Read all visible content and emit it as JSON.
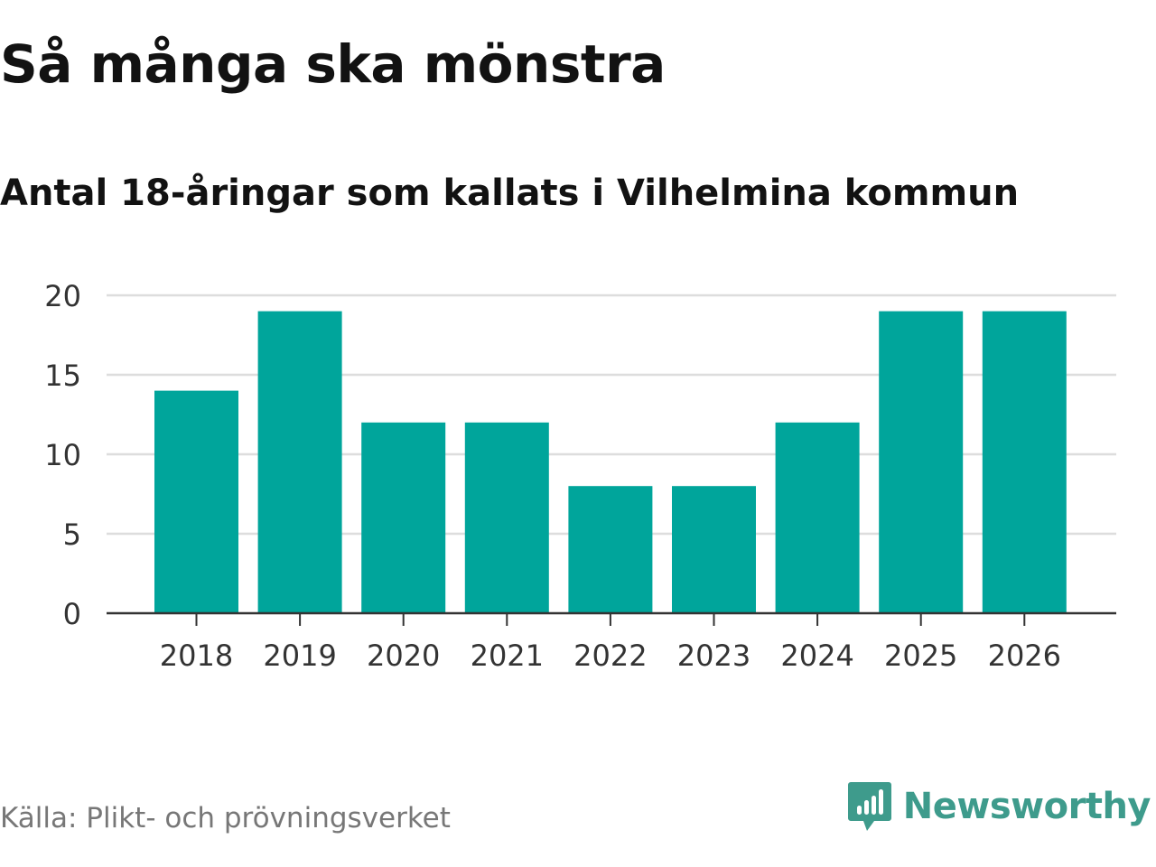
{
  "title": "Så många ska mönstra",
  "subtitle": "Antal 18-åringar som kallats i Vilhelmina kommun",
  "source": "Källa: Plikt- och prövningsverket",
  "brand": {
    "name": "Newsworthy",
    "icon": "newsworthy-logo-icon",
    "color": "#3e9b8c"
  },
  "chart_data": {
    "type": "bar",
    "categories": [
      "2018",
      "2019",
      "2020",
      "2021",
      "2022",
      "2023",
      "2024",
      "2025",
      "2026"
    ],
    "values": [
      14,
      19,
      12,
      12,
      8,
      8,
      12,
      19,
      19
    ],
    "title": "Så många ska mönstra",
    "subtitle": "Antal 18-åringar som kallats i Vilhelmina kommun",
    "xlabel": "",
    "ylabel": "",
    "ylim": [
      0,
      20
    ],
    "yticks": [
      0,
      5,
      10,
      15,
      20
    ],
    "grid": true,
    "bar_color": "#00a59b",
    "grid_color": "#dddddd",
    "axis_color": "#333333"
  }
}
